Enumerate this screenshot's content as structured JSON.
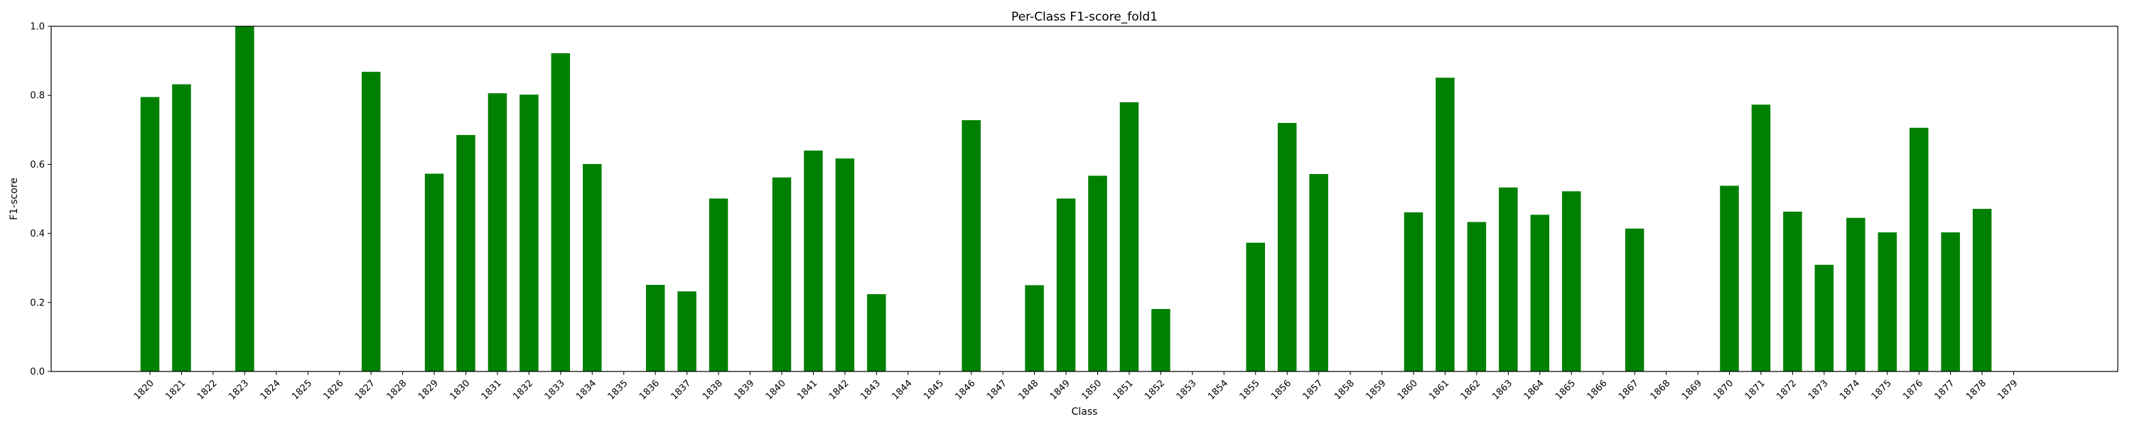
{
  "chart_data": {
    "type": "bar",
    "title": "Per-Class F1-score_fold1",
    "xlabel": "Class",
    "ylabel": "F1-score",
    "ylim": [
      0.0,
      1.0
    ],
    "yticks": [
      "0.0",
      "0.2",
      "0.4",
      "0.6",
      "0.8",
      "1.0"
    ],
    "grid": false,
    "bar_color": "#008000",
    "categories": [
      "1820",
      "1821",
      "1822",
      "1823",
      "1824",
      "1825",
      "1826",
      "1827",
      "1828",
      "1829",
      "1830",
      "1831",
      "1832",
      "1833",
      "1834",
      "1835",
      "1836",
      "1837",
      "1838",
      "1839",
      "1840",
      "1841",
      "1842",
      "1843",
      "1844",
      "1845",
      "1846",
      "1847",
      "1848",
      "1849",
      "1850",
      "1851",
      "1852",
      "1853",
      "1854",
      "1855",
      "1856",
      "1857",
      "1858",
      "1859",
      "1860",
      "1861",
      "1862",
      "1863",
      "1864",
      "1865",
      "1866",
      "1867",
      "1868",
      "1869",
      "1870",
      "1871",
      "1872",
      "1873",
      "1874",
      "1875",
      "1876",
      "1877",
      "1878",
      "1879"
    ],
    "values": [
      0.795,
      0.832,
      0.0,
      1.0,
      0.0,
      0.0,
      0.0,
      0.868,
      0.0,
      0.573,
      0.685,
      0.806,
      0.802,
      0.922,
      0.601,
      0.0,
      0.251,
      0.232,
      0.501,
      0.0,
      0.562,
      0.64,
      0.617,
      0.224,
      0.0,
      0.0,
      0.728,
      0.0,
      0.25,
      0.501,
      0.567,
      0.78,
      0.181,
      0.0,
      0.0,
      0.373,
      0.72,
      0.572,
      0.0,
      0.0,
      0.461,
      0.851,
      0.433,
      0.533,
      0.454,
      0.522,
      0.0,
      0.414,
      0.0,
      0.0,
      0.538,
      0.773,
      0.463,
      0.309,
      0.445,
      0.403,
      0.706,
      0.403,
      0.471,
      0.0
    ]
  }
}
